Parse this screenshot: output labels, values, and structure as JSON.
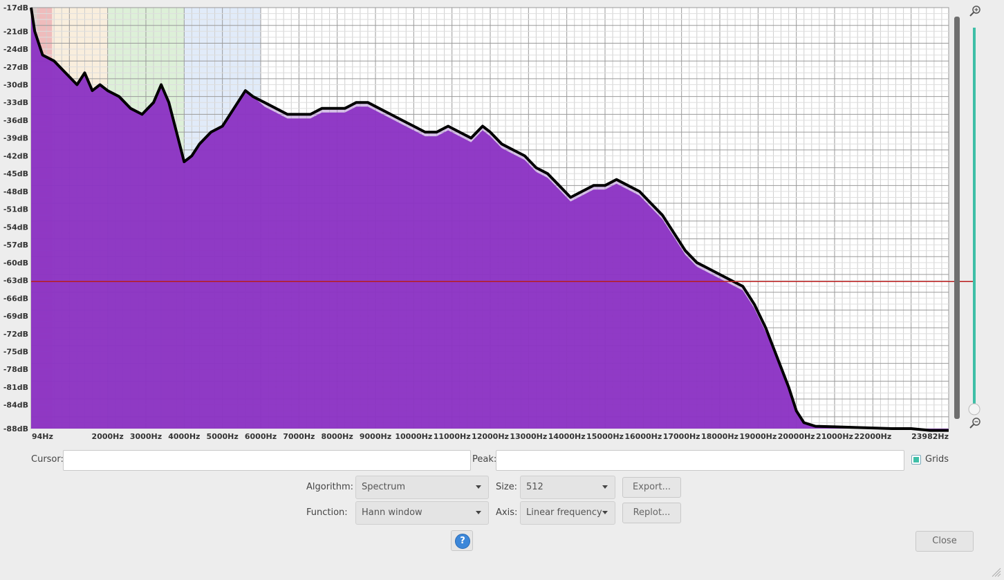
{
  "chart_data": {
    "type": "area",
    "title": "",
    "xlabel": "",
    "ylabel": "",
    "xlim": [
      0,
      23982
    ],
    "ylim": [
      -88,
      -17
    ],
    "x_ticks": [
      "94Hz",
      "2000Hz",
      "3000Hz",
      "4000Hz",
      "5000Hz",
      "6000Hz",
      "7000Hz",
      "8000Hz",
      "9000Hz",
      "10000Hz",
      "11000Hz",
      "12000Hz",
      "13000Hz",
      "14000Hz",
      "15000Hz",
      "16000Hz",
      "17000Hz",
      "18000Hz",
      "19000Hz",
      "20000Hz",
      "21000Hz",
      "22000Hz",
      "23982Hz"
    ],
    "y_ticks": [
      "-17dB",
      "-21dB",
      "-24dB",
      "-27dB",
      "-30dB",
      "-33dB",
      "-36dB",
      "-39dB",
      "-42dB",
      "-45dB",
      "-48dB",
      "-51dB",
      "-54dB",
      "-57dB",
      "-60dB",
      "-63dB",
      "-66dB",
      "-69dB",
      "-72dB",
      "-75dB",
      "-78dB",
      "-81dB",
      "-84dB",
      "-88dB"
    ],
    "grid": true,
    "series": [
      {
        "x": [
          0,
          94,
          300,
          600,
          900,
          1200,
          1400,
          1600,
          1800,
          2000,
          2300,
          2600,
          2900,
          3200,
          3400,
          3600,
          3800,
          4000,
          4200,
          4400,
          4700,
          5000,
          5300,
          5600,
          5800,
          6100,
          6400,
          6700,
          7000,
          7300,
          7600,
          7900,
          8200,
          8500,
          8800,
          9100,
          9400,
          9700,
          10000,
          10300,
          10600,
          10900,
          11200,
          11500,
          11800,
          12000,
          12300,
          12600,
          12900,
          13200,
          13500,
          13800,
          14100,
          14400,
          14700,
          15000,
          15300,
          15600,
          15900,
          16200,
          16500,
          16800,
          17100,
          17400,
          17700,
          18000,
          18300,
          18600,
          18900,
          19200,
          19500,
          19800,
          20000,
          20200,
          20500,
          21000,
          21500,
          22000,
          22500,
          23000,
          23500,
          23982
        ],
        "values": [
          -17,
          -21,
          -25,
          -26,
          -28,
          -30,
          -28,
          -31,
          -30,
          -31,
          -32,
          -34,
          -35,
          -33,
          -30,
          -33,
          -38,
          -43,
          -42,
          -40,
          -38,
          -37,
          -34,
          -31,
          -32,
          -33,
          -34,
          -35,
          -35,
          -35,
          -34,
          -34,
          -34,
          -33,
          -33,
          -34,
          -35,
          -36,
          -37,
          -38,
          -38,
          -37,
          -38,
          -39,
          -37,
          -38,
          -40,
          -41,
          -42,
          -44,
          -45,
          -47,
          -49,
          -48,
          -47,
          -47,
          -46,
          -47,
          -48,
          -50,
          -52,
          -55,
          -58,
          -60,
          -61,
          -62,
          -63,
          -64,
          -67,
          -71,
          -76,
          -81,
          -85,
          -87,
          -87.6,
          -87.7,
          -87.8,
          -87.9,
          -88,
          -88,
          -88.3,
          -88.3
        ]
      }
    ],
    "peak_line_db": -63.2
  },
  "controls": {
    "cursor_label": "Cursor:",
    "cursor_value": "",
    "peak_label": "Peak:",
    "peak_value": "",
    "grids_label": "Grids",
    "grids_checked": true,
    "algorithm_label": "Algorithm:",
    "algorithm_value": "Spectrum",
    "size_label": "Size:",
    "size_value": "512",
    "export_label": "Export...",
    "function_label": "Function:",
    "function_value": "Hann window",
    "axis_label": "Axis:",
    "axis_value": "Linear frequency",
    "replot_label": "Replot...",
    "help_symbol": "?",
    "close_label": "Close"
  },
  "icons": {
    "zoom_in": "zoom-in-icon",
    "zoom_out": "zoom-out-icon"
  },
  "colors": {
    "spectrum_fill": "#8a2fc2",
    "spectrum_light": "#b78fd6",
    "peak_line": "#b81c1c",
    "band_red": "#e8a0a0",
    "band_peach": "#f7e7cf",
    "band_green": "#cfe9c8",
    "band_blue": "#d4e2f6",
    "slider": "#3fbfa7"
  }
}
